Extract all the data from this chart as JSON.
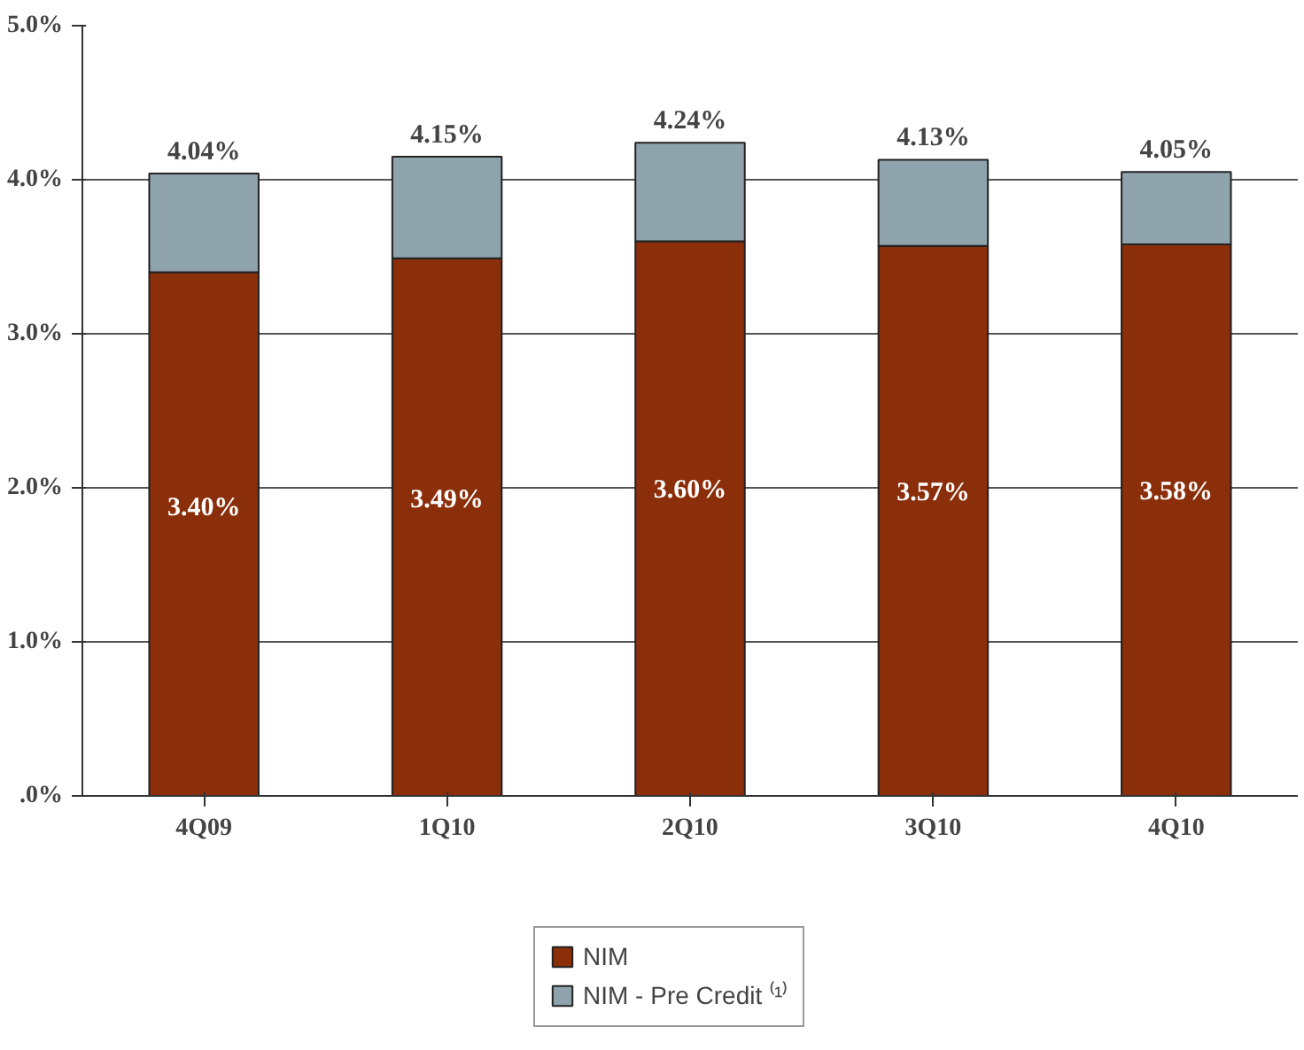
{
  "chart_data": {
    "type": "bar",
    "stacked": true,
    "categories": [
      "4Q09",
      "1Q10",
      "2Q10",
      "3Q10",
      "4Q10"
    ],
    "series": [
      {
        "name": "NIM",
        "color": "#8b2e0a",
        "values": [
          3.4,
          3.49,
          3.6,
          3.57,
          3.58
        ],
        "value_labels": [
          "3.40%",
          "3.49%",
          "3.60%",
          "3.57%",
          "3.58%"
        ]
      },
      {
        "name": "NIM - Pre Credit ⁽¹⁾",
        "color": "#8fa3ac",
        "values": [
          0.64,
          0.66,
          0.64,
          0.56,
          0.47
        ]
      }
    ],
    "totals": [
      "4.04%",
      "4.15%",
      "4.24%",
      "4.13%",
      "4.05%"
    ],
    "ylim": [
      0,
      5
    ],
    "yticks": [
      {
        "value": 0,
        "label": ".0%"
      },
      {
        "value": 1,
        "label": "1.0%"
      },
      {
        "value": 2,
        "label": "2.0%"
      },
      {
        "value": 3,
        "label": "3.0%"
      },
      {
        "value": 4,
        "label": "4.0%"
      },
      {
        "value": 5,
        "label": "5.0%"
      }
    ],
    "grid": "y",
    "legend": "bottom"
  }
}
